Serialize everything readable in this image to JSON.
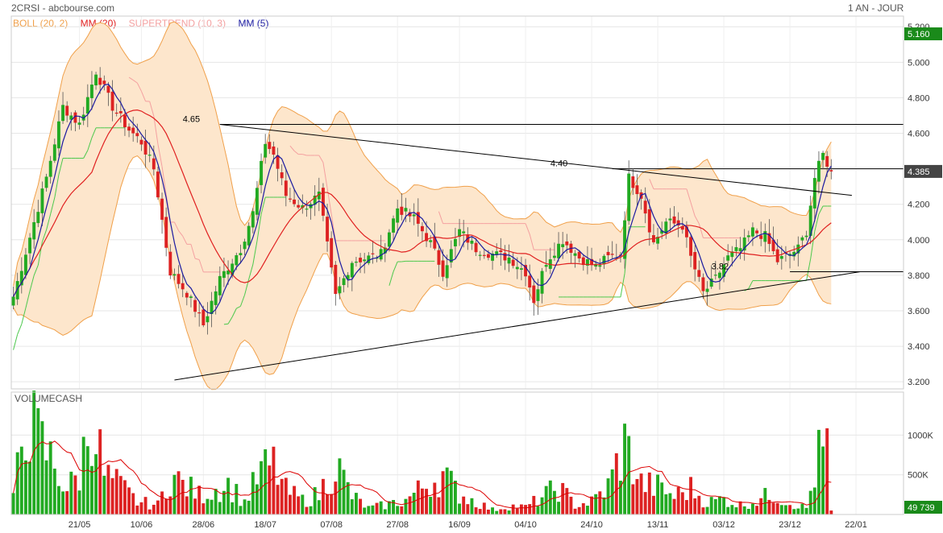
{
  "header": {
    "title": "2CRSI - abcbourse.com",
    "period": "1 AN - JOUR"
  },
  "legend": [
    {
      "label": "BOLL (20, 2)",
      "color": "#f0a04a"
    },
    {
      "label": "MM (20)",
      "color": "#e02020"
    },
    {
      "label": "SUPERTREND (10, 3)",
      "color": "#f4a0a0"
    },
    {
      "label": "MM (5)",
      "color": "#1a1aa0"
    }
  ],
  "colors": {
    "up": "#22aa22",
    "down": "#dd2222",
    "boll_fill": "#fde6cc",
    "boll_line": "#f0a04a",
    "mm20": "#e02020",
    "mm5": "#1a1aa0",
    "supertrend_up": "#4cc84c",
    "supertrend_down": "#f4a0a0",
    "price_tag": "#1a8a1a",
    "last_tag": "#444444",
    "volume_mm": "#dd0000"
  },
  "chart_data": {
    "type": "candlestick",
    "price_panel": {
      "ylim": [
        3.16,
        5.26
      ],
      "yticks": [
        "3.200",
        "3.400",
        "3.600",
        "3.800",
        "4.000",
        "4.200",
        "4.400",
        "4.600",
        "4.800",
        "5.000",
        "5.200"
      ],
      "current_price_label": "5.160",
      "last_price_label": "4.385",
      "last_price": 4.385,
      "x_labels": [
        "21/05",
        "10/06",
        "28/06",
        "18/07",
        "07/08",
        "27/08",
        "16/09",
        "04/10",
        "24/10",
        "13/11",
        "03/12",
        "23/12",
        "22/01"
      ],
      "x_label_index": [
        16,
        31,
        46,
        61,
        77,
        93,
        108,
        124,
        140,
        156,
        172,
        188,
        204
      ],
      "total_slots": 216,
      "anchor_closes": [
        [
          0,
          3.68
        ],
        [
          8,
          4.35
        ],
        [
          12,
          4.75
        ],
        [
          16,
          4.65
        ],
        [
          20,
          4.95
        ],
        [
          24,
          4.75
        ],
        [
          28,
          4.62
        ],
        [
          31,
          4.55
        ],
        [
          34,
          4.4
        ],
        [
          38,
          3.82
        ],
        [
          42,
          3.7
        ],
        [
          46,
          3.52
        ],
        [
          50,
          3.78
        ],
        [
          55,
          3.95
        ],
        [
          58,
          4.15
        ],
        [
          61,
          4.55
        ],
        [
          63,
          4.48
        ],
        [
          66,
          4.25
        ],
        [
          70,
          4.18
        ],
        [
          74,
          4.25
        ],
        [
          78,
          3.68
        ],
        [
          82,
          3.88
        ],
        [
          86,
          3.9
        ],
        [
          89,
          3.92
        ],
        [
          93,
          4.18
        ],
        [
          97,
          4.12
        ],
        [
          101,
          3.98
        ],
        [
          104,
          3.82
        ],
        [
          108,
          4.05
        ],
        [
          112,
          3.95
        ],
        [
          116,
          3.92
        ],
        [
          120,
          3.9
        ],
        [
          124,
          3.82
        ],
        [
          126,
          3.66
        ],
        [
          129,
          3.88
        ],
        [
          133,
          4.0
        ],
        [
          137,
          3.9
        ],
        [
          141,
          3.85
        ],
        [
          144,
          3.9
        ],
        [
          147,
          3.92
        ],
        [
          149,
          4.35
        ],
        [
          152,
          4.25
        ],
        [
          155,
          3.98
        ],
        [
          158,
          4.1
        ],
        [
          162,
          4.08
        ],
        [
          164,
          3.9
        ],
        [
          167,
          3.7
        ],
        [
          170,
          3.78
        ],
        [
          173,
          3.9
        ],
        [
          176,
          3.95
        ],
        [
          179,
          4.05
        ],
        [
          182,
          4.02
        ],
        [
          185,
          3.88
        ],
        [
          188,
          3.92
        ],
        [
          190,
          3.95
        ],
        [
          192,
          4.05
        ],
        [
          194,
          4.35
        ],
        [
          196,
          4.48
        ],
        [
          198,
          4.385
        ]
      ],
      "annotations": [
        {
          "text": "4.65",
          "value": 4.65
        },
        {
          "text": "4.40",
          "value": 4.4
        },
        {
          "text": "3.82",
          "value": 3.82
        }
      ],
      "horizontal_lines": [
        4.65,
        4.4,
        3.82
      ],
      "trend_lines": [
        {
          "from": [
            39,
            3.21
          ],
          "to": [
            205,
            3.82
          ]
        },
        {
          "from": [
            50,
            4.65
          ],
          "to": [
            203,
            4.25
          ]
        }
      ]
    },
    "volume_panel": {
      "title": "VOLUMECASH",
      "ylim": [
        0,
        1400000
      ],
      "yticks": [
        "500K",
        "1000K"
      ],
      "ytick_values": [
        500000,
        1000000
      ],
      "last_volume_label": "49 739",
      "last_volume": 49739,
      "anchor_volumes": [
        [
          0,
          180000
        ],
        [
          3,
          1300000
        ],
        [
          6,
          950000
        ],
        [
          9,
          700000
        ],
        [
          13,
          320000
        ],
        [
          16,
          500000
        ],
        [
          19,
          1300000
        ],
        [
          22,
          500000
        ],
        [
          26,
          350000
        ],
        [
          30,
          160000
        ],
        [
          35,
          120000
        ],
        [
          38,
          500000
        ],
        [
          41,
          380000
        ],
        [
          45,
          250000
        ],
        [
          48,
          300000
        ],
        [
          52,
          380000
        ],
        [
          56,
          160000
        ],
        [
          60,
          540000
        ],
        [
          63,
          620000
        ],
        [
          66,
          300000
        ],
        [
          70,
          180000
        ],
        [
          74,
          250000
        ],
        [
          78,
          650000
        ],
        [
          82,
          230000
        ],
        [
          86,
          80000
        ],
        [
          90,
          120000
        ],
        [
          95,
          180000
        ],
        [
          100,
          380000
        ],
        [
          104,
          500000
        ],
        [
          108,
          260000
        ],
        [
          112,
          160000
        ],
        [
          116,
          60000
        ],
        [
          120,
          110000
        ],
        [
          124,
          90000
        ],
        [
          128,
          220000
        ],
        [
          132,
          340000
        ],
        [
          136,
          120000
        ],
        [
          140,
          160000
        ],
        [
          144,
          350000
        ],
        [
          148,
          880000
        ],
        [
          152,
          390000
        ],
        [
          156,
          340000
        ],
        [
          160,
          230000
        ],
        [
          164,
          330000
        ],
        [
          168,
          150000
        ],
        [
          172,
          200000
        ],
        [
          176,
          120000
        ],
        [
          180,
          180000
        ],
        [
          184,
          260000
        ],
        [
          188,
          150000
        ],
        [
          192,
          80000
        ],
        [
          195,
          720000
        ],
        [
          197,
          840000
        ],
        [
          198,
          50000
        ]
      ]
    }
  }
}
